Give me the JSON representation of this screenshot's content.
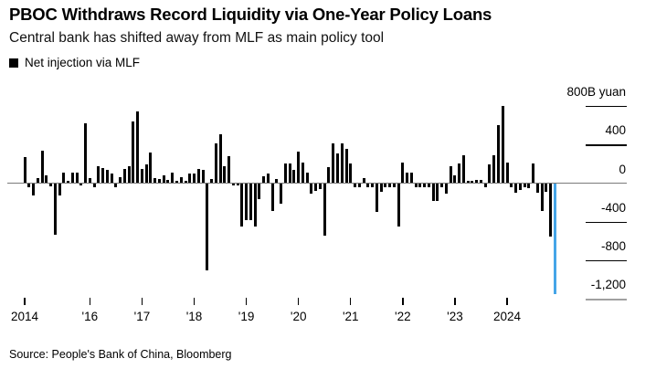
{
  "header": {
    "title": "PBOC Withdraws Record Liquidity via One-Year Policy Loans",
    "subtitle": "Central bank has shifted away from MLF as main policy tool"
  },
  "legend": {
    "label": "Net injection via MLF",
    "swatch_color": "#000000"
  },
  "source": "Source: People's Bank of China, Bloomberg",
  "colors": {
    "bar": "#000000",
    "highlight_bar": "#45a5e8",
    "zero_line": "#7a7a7a",
    "grid_line": "#000000",
    "bottom_grid_line": "#a0a0a0"
  },
  "chart_data": {
    "type": "bar",
    "title": "PBOC Withdraws Record Liquidity via One-Year Policy Loans",
    "subtitle": "Central bank has shifted away from MLF as main policy tool",
    "series_name": "Net injection via MLF",
    "unit": "B yuan",
    "frequency": "monthly",
    "start_month": "2014-10",
    "end_month": "2024-12",
    "xlabel": "",
    "ylabel": "800B yuan",
    "ylim": [
      -1300,
      850
    ],
    "grid": "right-side tick dashes only, gray zero axis",
    "legend_position": "top-left",
    "highlight_last_bar": true,
    "highlight_last_value": -1150,
    "values": [
      270,
      -45,
      -130,
      55,
      340,
      80,
      -30,
      -535,
      -125,
      110,
      25,
      110,
      105,
      -25,
      620,
      55,
      0,
      175,
      155,
      140,
      95,
      -40,
      65,
      150,
      175,
      635,
      740,
      150,
      190,
      315,
      55,
      45,
      80,
      30,
      110,
      20,
      65,
      25,
      95,
      100,
      150,
      140,
      -900,
      40,
      415,
      505,
      175,
      280,
      -20,
      -25,
      -445,
      -385,
      -385,
      -445,
      -165,
      70,
      95,
      -290,
      45,
      -210,
      205,
      200,
      140,
      325,
      215,
      110,
      -110,
      -80,
      -65,
      -540,
      165,
      410,
      305,
      410,
      355,
      205,
      0,
      0,
      55,
      0,
      0,
      -295,
      -90,
      0,
      0,
      0,
      -445,
      215,
      110,
      110,
      0,
      0,
      0,
      0,
      -180,
      -180,
      0,
      -110,
      175,
      80,
      200,
      285,
      20,
      25,
      35,
      30,
      0,
      190,
      290,
      600,
      800,
      215,
      0,
      -95,
      -70,
      0,
      -55,
      200,
      -100,
      -290,
      -90,
      -550,
      -1150
    ],
    "y_axis": {
      "ticks": [
        {
          "value": 800,
          "label": "800B yuan",
          "muted_line": false
        },
        {
          "value": 400,
          "label": "400",
          "muted_line": false
        },
        {
          "value": 0,
          "label": "0",
          "muted_line": false
        },
        {
          "value": -400,
          "label": "-400",
          "muted_line": false
        },
        {
          "value": -800,
          "label": "-800",
          "muted_line": false
        },
        {
          "value": -1200,
          "label": "-1,200",
          "muted_line": true
        }
      ]
    },
    "x_axis": {
      "ticks": [
        {
          "label": "2014",
          "month_index": 0
        },
        {
          "label": "'16",
          "month_index": 15
        },
        {
          "label": "'17",
          "month_index": 27
        },
        {
          "label": "'18",
          "month_index": 39
        },
        {
          "label": "'19",
          "month_index": 51
        },
        {
          "label": "'20",
          "month_index": 63
        },
        {
          "label": "'21",
          "month_index": 75
        },
        {
          "label": "'22",
          "month_index": 87
        },
        {
          "label": "'23",
          "month_index": 99
        },
        {
          "label": "2024",
          "month_index": 111
        }
      ]
    }
  }
}
